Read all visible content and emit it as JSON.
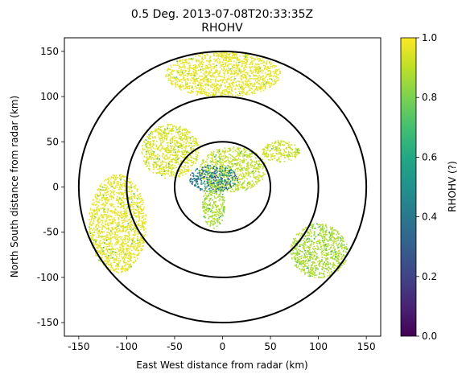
{
  "chart_data": {
    "type": "heatmap",
    "title_line1": "0.5 Deg. 2013-07-08T20:33:35Z",
    "title_line2": "RHOHV",
    "xlabel": "East West distance from radar (km)",
    "ylabel": "North South distance from radar (km)",
    "xlim": [
      -165,
      165
    ],
    "ylim": [
      -165,
      165
    ],
    "xticks": [
      -150,
      -100,
      -50,
      0,
      50,
      100,
      150
    ],
    "yticks": [
      -150,
      -100,
      -50,
      0,
      50,
      100,
      150
    ],
    "range_rings_km": [
      50,
      100,
      150
    ],
    "colorbar": {
      "label": "RHOHV (?)",
      "range": [
        0,
        1
      ],
      "ticks": [
        "0.0",
        "0.2",
        "0.4",
        "0.6",
        "0.8",
        "1.0"
      ],
      "colormap": "viridis"
    },
    "echo_regions": [
      {
        "name": "west-band",
        "x": -110,
        "y": -40,
        "rx": 30,
        "ry": 55,
        "rhohv": 0.98
      },
      {
        "name": "northwest-core",
        "x": -55,
        "y": 40,
        "rx": 30,
        "ry": 30,
        "rhohv": 0.97
      },
      {
        "name": "central-core",
        "x": 10,
        "y": 20,
        "rx": 35,
        "ry": 25,
        "rhohv": 0.95
      },
      {
        "name": "northeast-cell",
        "x": 60,
        "y": 40,
        "rx": 20,
        "ry": 12,
        "rhohv": 0.96
      },
      {
        "name": "radar-clutter",
        "x": -10,
        "y": 10,
        "rx": 25,
        "ry": 15,
        "rhohv": 0.7
      },
      {
        "name": "south-arm",
        "x": -10,
        "y": -20,
        "rx": 12,
        "ry": 25,
        "rhohv": 0.93
      },
      {
        "name": "north-cells",
        "x": 0,
        "y": 125,
        "rx": 60,
        "ry": 25,
        "rhohv": 0.98
      },
      {
        "name": "east-streaks",
        "x": 100,
        "y": -70,
        "rx": 30,
        "ry": 30,
        "rhohv": 0.93
      }
    ]
  }
}
